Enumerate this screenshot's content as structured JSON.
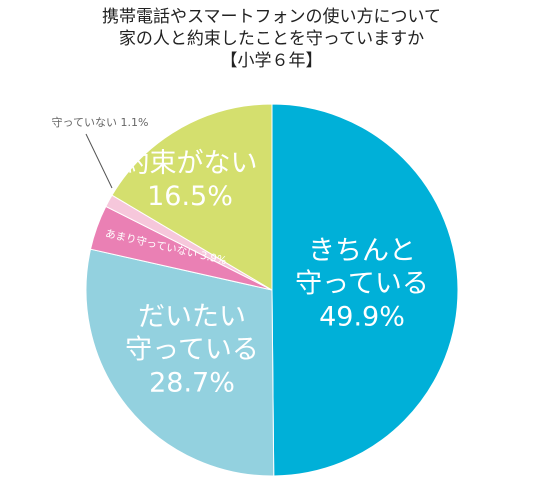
{
  "chart_data": {
    "type": "pie",
    "title": [
      "携帯電話やスマートフォンの使い方について",
      "家の人と約束したことを守っていますか",
      "【小学６年】"
    ],
    "categories": [
      "きちんと\n守っている",
      "だいたい\n守っている",
      "あまり守っていない",
      "守っていない",
      "約束がない"
    ],
    "values": [
      49.9,
      28.7,
      3.9,
      1.1,
      16.5
    ],
    "value_labels": [
      "49.9%",
      "28.7%",
      "3.9%",
      "1.1%",
      "16.5%"
    ],
    "colors": [
      "#00b0d8",
      "#93d1df",
      "#ea80b4",
      "#f6c7db",
      "#d4df6e"
    ]
  }
}
